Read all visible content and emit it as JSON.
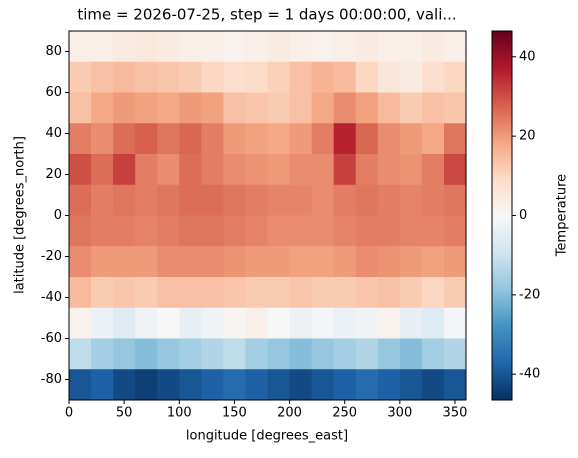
{
  "chart_data": {
    "type": "heatmap",
    "title": "time = 2026-07-25, step = 1 days 00:00:00, vali...",
    "x_label": "longitude [degrees_east]",
    "y_label": "latitude [degrees_north]",
    "colorbar_label": "Temperature",
    "x": [
      10,
      30,
      50,
      70,
      90,
      110,
      130,
      150,
      170,
      190,
      210,
      230,
      250,
      270,
      290,
      310,
      330,
      350
    ],
    "y": [
      82.5,
      67.5,
      52.5,
      37.5,
      22.5,
      7.5,
      -7.5,
      -22.5,
      -37.5,
      -52.5,
      -67.5,
      -82.5
    ],
    "z": [
      [
        3,
        3,
        4,
        5,
        4,
        3,
        3,
        2,
        3,
        4,
        3,
        2,
        3,
        4,
        3,
        3,
        4,
        3
      ],
      [
        12,
        14,
        15,
        14,
        13,
        12,
        10,
        8,
        9,
        11,
        14,
        16,
        15,
        10,
        6,
        4,
        8,
        10
      ],
      [
        14,
        18,
        20,
        19,
        18,
        20,
        19,
        14,
        13,
        12,
        14,
        18,
        22,
        19,
        15,
        12,
        14,
        13
      ],
      [
        24,
        22,
        26,
        28,
        25,
        27,
        24,
        20,
        19,
        18,
        20,
        24,
        36,
        27,
        22,
        20,
        18,
        25
      ],
      [
        30,
        26,
        32,
        24,
        22,
        26,
        24,
        22,
        21,
        20,
        22,
        22,
        32,
        24,
        22,
        21,
        24,
        31
      ],
      [
        26,
        24,
        25,
        24,
        25,
        26,
        26,
        25,
        24,
        23,
        23,
        22,
        24,
        25,
        24,
        23,
        24,
        25
      ],
      [
        25,
        24,
        24,
        23,
        24,
        25,
        25,
        24,
        23,
        22,
        22,
        22,
        23,
        24,
        24,
        23,
        23,
        24
      ],
      [
        22,
        20,
        20,
        20,
        22,
        22,
        22,
        21,
        20,
        20,
        19,
        19,
        20,
        22,
        21,
        20,
        19,
        20
      ],
      [
        15,
        12,
        13,
        12,
        14,
        14,
        14,
        13,
        12,
        12,
        13,
        12,
        12,
        13,
        14,
        12,
        10,
        12
      ],
      [
        2,
        -3,
        -6,
        -2,
        0,
        -4,
        -2,
        1,
        3,
        0,
        -3,
        -1,
        -3,
        -2,
        2,
        -4,
        -6,
        -1
      ],
      [
        -12,
        -16,
        -18,
        -20,
        -18,
        -16,
        -14,
        -12,
        -16,
        -18,
        -20,
        -18,
        -16,
        -14,
        -18,
        -20,
        -16,
        -14
      ],
      [
        -40,
        -38,
        -42,
        -44,
        -42,
        -40,
        -38,
        -36,
        -38,
        -40,
        -42,
        -40,
        -38,
        -36,
        -38,
        -40,
        -42,
        -40
      ]
    ],
    "xlim": [
      0,
      360
    ],
    "ylim": [
      -90,
      90
    ],
    "xticks": [
      0,
      50,
      100,
      150,
      200,
      250,
      300,
      350
    ],
    "yticks": [
      -80,
      -60,
      -40,
      -20,
      0,
      20,
      40,
      60,
      80
    ],
    "clim": [
      -46.5,
      46.5
    ],
    "cticks": [
      -40,
      -20,
      0,
      20,
      40
    ],
    "colormap": [
      "#053061",
      "#2166ac",
      "#4393c3",
      "#92c5de",
      "#d1e5f0",
      "#f7f7f7",
      "#fddbc7",
      "#f4a582",
      "#d6604d",
      "#b2182b",
      "#67001f"
    ]
  }
}
